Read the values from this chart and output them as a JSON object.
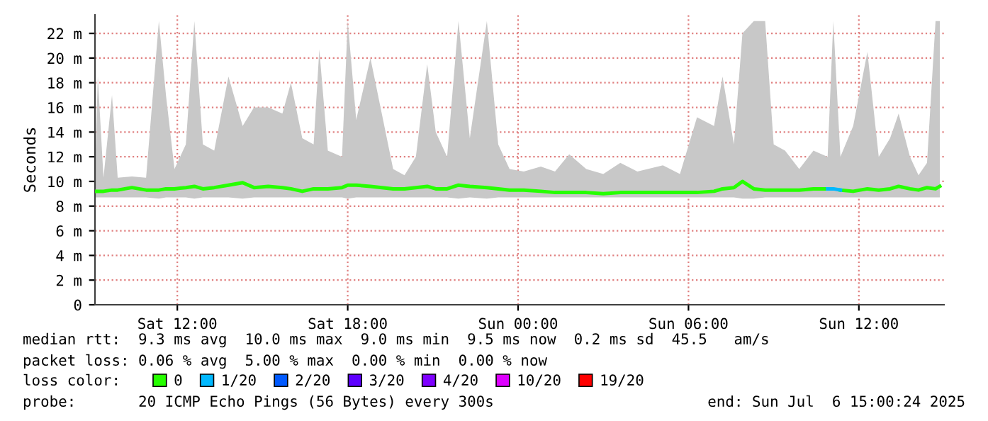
{
  "chart_data": {
    "type": "line",
    "ylabel": "Seconds",
    "legend_title": "loss color:",
    "legend": "bottom",
    "grid": true,
    "marker": "none",
    "line_style": "solid",
    "xlim": [
      "2025-07-05T09:06",
      "2025-07-06T15:00"
    ],
    "xticks": [
      {
        "value": "2025-07-05T12:00",
        "label": "Sat 12:00"
      },
      {
        "value": "2025-07-05T18:00",
        "label": "Sat 18:00"
      },
      {
        "value": "2025-07-06T00:00",
        "label": "Sun 00:00"
      },
      {
        "value": "2025-07-06T06:00",
        "label": "Sun 06:00"
      },
      {
        "value": "2025-07-06T12:00",
        "label": "Sun 12:00"
      }
    ],
    "ylim": [
      0,
      23.5
    ],
    "yticks": [
      0,
      {
        "value": 2,
        "label": "2 m"
      },
      {
        "value": 4,
        "label": "4 m"
      },
      {
        "value": 6,
        "label": "6 m"
      },
      {
        "value": 8,
        "label": "8 m"
      },
      {
        "value": 10,
        "label": "10 m"
      },
      {
        "value": 12,
        "label": "12 m"
      },
      {
        "value": 14,
        "label": "14 m"
      },
      {
        "value": 16,
        "label": "16 m"
      },
      {
        "value": 18,
        "label": "18 m"
      },
      {
        "value": 20,
        "label": "20 m"
      },
      {
        "value": 22,
        "label": "22 m"
      }
    ],
    "series": [
      {
        "name": "0",
        "color": "#26ff00",
        "x": [
          "2025-07-05T09:06",
          "2025-07-05T09:12",
          "2025-07-05T09:24",
          "2025-07-05T09:42",
          "2025-07-05T09:54",
          "2025-07-05T10:24",
          "2025-07-05T10:54",
          "2025-07-05T11:21",
          "2025-07-05T11:36",
          "2025-07-05T11:54",
          "2025-07-05T12:18",
          "2025-07-05T12:36",
          "2025-07-05T12:54",
          "2025-07-05T13:18",
          "2025-07-05T13:48",
          "2025-07-05T14:18",
          "2025-07-05T14:42",
          "2025-07-05T15:12",
          "2025-07-05T15:42",
          "2025-07-05T16:00",
          "2025-07-05T16:24",
          "2025-07-05T16:48",
          "2025-07-05T17:00",
          "2025-07-05T17:18",
          "2025-07-05T17:48",
          "2025-07-05T18:00",
          "2025-07-05T18:18",
          "2025-07-05T18:48",
          "2025-07-05T19:12",
          "2025-07-05T19:36",
          "2025-07-05T20:00",
          "2025-07-05T20:24",
          "2025-07-05T20:48",
          "2025-07-05T21:06",
          "2025-07-05T21:30",
          "2025-07-05T21:54",
          "2025-07-05T22:18",
          "2025-07-05T22:54",
          "2025-07-05T23:18",
          "2025-07-05T23:42",
          "2025-07-06T00:12",
          "2025-07-06T00:48",
          "2025-07-06T01:18",
          "2025-07-06T01:48",
          "2025-07-06T02:24",
          "2025-07-06T03:00",
          "2025-07-06T03:36",
          "2025-07-06T04:12",
          "2025-07-06T05:06",
          "2025-07-06T05:42",
          "2025-07-06T06:18",
          "2025-07-06T06:54",
          "2025-07-06T07:12",
          "2025-07-06T07:36",
          "2025-07-06T07:54",
          "2025-07-06T08:18",
          "2025-07-06T08:42",
          "2025-07-06T09:00",
          "2025-07-06T09:24",
          "2025-07-06T09:54",
          "2025-07-06T10:24",
          "2025-07-06T10:54",
          "2025-07-06T11:06",
          "2025-07-06T11:21",
          "2025-07-06T11:48",
          "2025-07-06T12:18",
          "2025-07-06T12:42",
          "2025-07-06T13:06",
          "2025-07-06T13:24",
          "2025-07-06T13:48",
          "2025-07-06T14:06",
          "2025-07-06T14:24",
          "2025-07-06T14:42",
          "2025-07-06T14:51"
        ],
        "values": [
          9.2,
          9.2,
          9.2,
          9.3,
          9.3,
          9.5,
          9.3,
          9.3,
          9.4,
          9.4,
          9.5,
          9.6,
          9.4,
          9.5,
          9.7,
          9.9,
          9.5,
          9.6,
          9.5,
          9.4,
          9.2,
          9.4,
          9.4,
          9.4,
          9.5,
          9.7,
          9.7,
          9.6,
          9.5,
          9.4,
          9.4,
          9.5,
          9.6,
          9.4,
          9.4,
          9.7,
          9.6,
          9.5,
          9.4,
          9.3,
          9.3,
          9.2,
          9.1,
          9.1,
          9.1,
          9.0,
          9.1,
          9.1,
          9.1,
          9.1,
          9.1,
          9.2,
          9.4,
          9.5,
          10.0,
          9.4,
          9.3,
          9.3,
          9.3,
          9.3,
          9.4,
          9.4,
          null,
          9.3,
          9.2,
          9.4,
          9.3,
          9.4,
          9.6,
          9.4,
          9.3,
          9.5,
          9.4,
          9.6
        ],
        "lower": [
          8.7,
          8.7,
          8.7,
          8.7,
          8.7,
          8.7,
          8.7,
          8.6,
          8.7,
          8.7,
          8.7,
          8.6,
          8.7,
          8.7,
          8.7,
          8.6,
          8.7,
          8.7,
          8.7,
          8.7,
          8.7,
          8.7,
          8.7,
          8.7,
          8.7,
          8.6,
          8.7,
          8.7,
          8.7,
          8.7,
          8.7,
          8.7,
          8.7,
          8.7,
          8.7,
          8.6,
          8.7,
          8.6,
          8.7,
          8.7,
          8.7,
          8.7,
          8.7,
          8.7,
          8.7,
          8.7,
          8.7,
          8.7,
          8.7,
          8.7,
          8.7,
          8.7,
          8.7,
          8.7,
          8.6,
          8.6,
          8.7,
          8.7,
          8.7,
          8.7,
          8.7,
          8.7,
          8.7,
          8.7,
          8.7,
          8.7,
          8.7,
          8.7,
          8.7,
          8.7,
          8.7,
          8.7,
          8.7,
          8.7
        ],
        "upper": [
          10.5,
          18.5,
          10.3,
          17.0,
          10.3,
          10.4,
          10.3,
          23.0,
          17.0,
          11.0,
          13.0,
          23.0,
          13.0,
          12.5,
          18.5,
          14.5,
          16.0,
          16.0,
          15.5,
          18.0,
          13.5,
          13.0,
          20.7,
          12.5,
          12.0,
          23.0,
          15.0,
          20.0,
          15.5,
          11.0,
          10.5,
          12.0,
          19.5,
          14.0,
          12.0,
          23.0,
          13.5,
          23.0,
          13.0,
          11.0,
          10.8,
          11.2,
          10.8,
          12.2,
          11.0,
          10.6,
          11.5,
          10.8,
          11.3,
          10.6,
          15.2,
          14.5,
          18.5,
          13.0,
          22.0,
          23.0,
          23.0,
          13.0,
          12.5,
          11.0,
          12.5,
          12.0,
          23.0,
          12.0,
          14.5,
          20.5,
          12.0,
          13.5,
          15.5,
          12.0,
          10.5,
          11.5,
          23.0,
          23.0
        ]
      },
      {
        "name": "1/20",
        "color": "#00b8ff",
        "x": [
          "2025-07-06T10:54",
          "2025-07-06T11:06",
          "2025-07-06T11:21"
        ],
        "values": [
          9.4,
          9.4,
          9.3
        ]
      },
      {
        "name": "2/20",
        "color": "#0059ff"
      },
      {
        "name": "3/20",
        "color": "#5e00ff"
      },
      {
        "name": "4/20",
        "color": "#7e00ff"
      },
      {
        "name": "10/20",
        "color": "#dd00ff"
      },
      {
        "name": "19/20",
        "color": "#ff0000"
      }
    ],
    "annotations": [
      "median rtt:  9.3 ms avg  10.0 ms max  9.0 ms min  9.5 ms now  0.2 ms sd  45.5   am/s",
      "packet loss: 0.06 % avg  5.00 % max  0.00 % min  0.00 % now",
      "probe:       20 ICMP Echo Pings (56 Bytes) every 300s",
      "end: Sun Jul  6 15:00:24 2025"
    ]
  }
}
